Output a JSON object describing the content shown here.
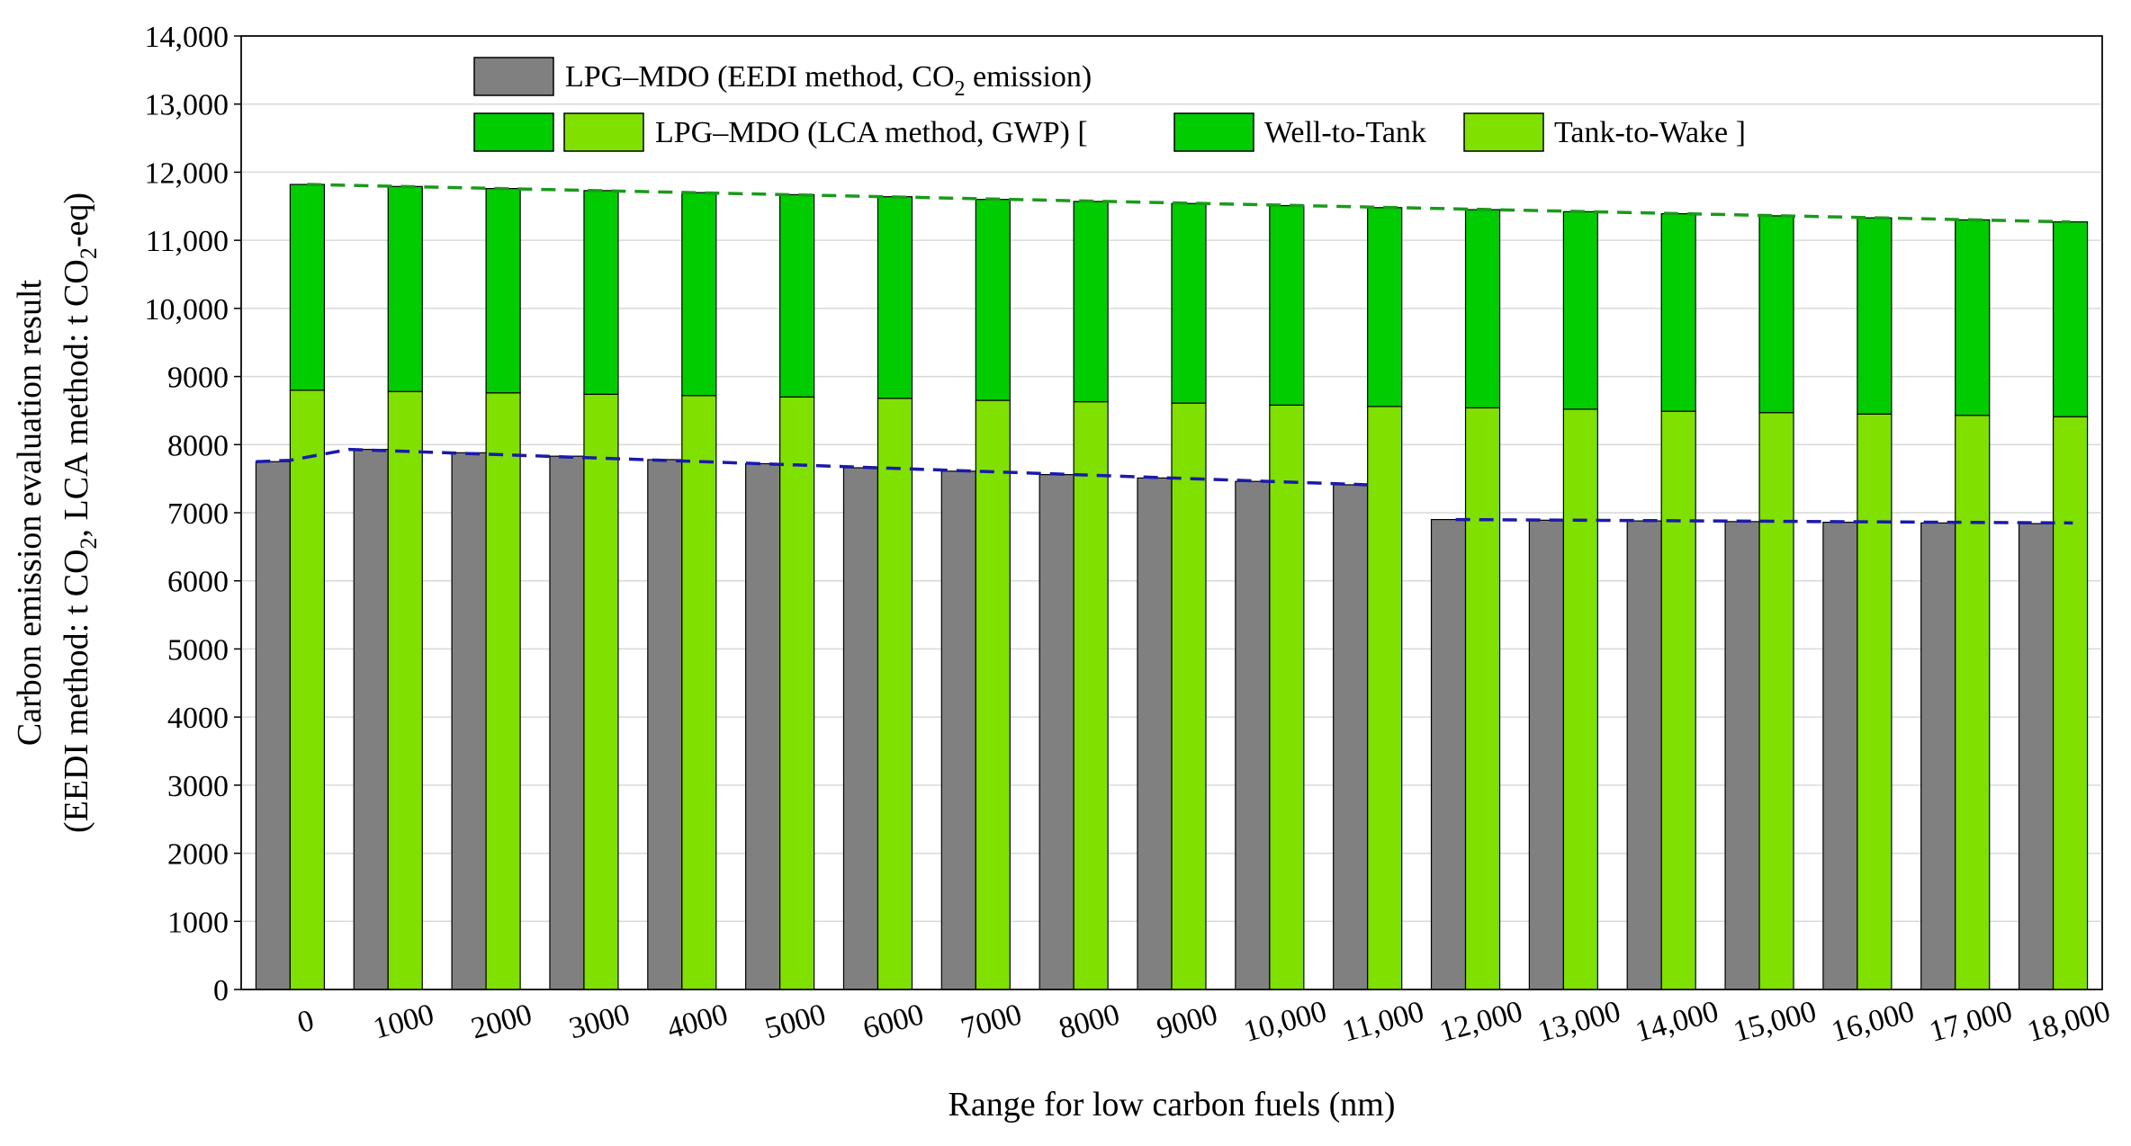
{
  "chart_data": {
    "type": "bar",
    "xlabel": "Range for low carbon fuels (nm)",
    "ylabel_line1": "Carbon emission evaluation result",
    "ylabel_line2": "(EEDI method: t CO₂, LCA method: t CO₂-eq)",
    "ylim": [
      0,
      14000
    ],
    "yticks": [
      0,
      1000,
      2000,
      3000,
      4000,
      5000,
      6000,
      7000,
      8000,
      9000,
      10000,
      11000,
      12000,
      13000,
      14000
    ],
    "ytick_labels": [
      "0",
      "1000",
      "2000",
      "3000",
      "4000",
      "5000",
      "6000",
      "7000",
      "8000",
      "9000",
      "10,000",
      "11,000",
      "12,000",
      "13,000",
      "14,000"
    ],
    "grid": true,
    "legend_position": "top-center",
    "categories": [
      "0",
      "1000",
      "2000",
      "3000",
      "4000",
      "5000",
      "6000",
      "7000",
      "8000",
      "9000",
      "10,000",
      "11,000",
      "12,000",
      "13,000",
      "14,000",
      "15,000",
      "16,000",
      "17,000",
      "18,000"
    ],
    "series": [
      {
        "name": "LPG–MDO (EEDI method, CO₂ emission)",
        "color": "#808080",
        "values": [
          7750,
          7930,
          7880,
          7830,
          7780,
          7720,
          7660,
          7610,
          7560,
          7510,
          7460,
          7410,
          6900,
          6890,
          6880,
          6870,
          6860,
          6850,
          6840
        ]
      },
      {
        "name": "Tank-to-Wake",
        "color": "#80e000",
        "values": [
          8800,
          8780,
          8760,
          8740,
          8720,
          8700,
          8680,
          8650,
          8630,
          8610,
          8580,
          8560,
          8540,
          8520,
          8490,
          8470,
          8450,
          8430,
          8410
        ]
      },
      {
        "name": "Well-to-Tank",
        "color": "#00cc00",
        "values": [
          3020,
          3010,
          3000,
          2990,
          2980,
          2970,
          2960,
          2950,
          2940,
          2930,
          2930,
          2920,
          2910,
          2900,
          2900,
          2890,
          2880,
          2870,
          2860
        ]
      }
    ],
    "lca_totals": [
      11820,
      11790,
      11760,
      11730,
      11700,
      11670,
      11640,
      11600,
      11570,
      11540,
      11510,
      11480,
      11450,
      11420,
      11390,
      11360,
      11330,
      11300,
      11270
    ],
    "trend_lines": [
      {
        "color": "#1a9a1a",
        "points": [
          [
            0,
            11820
          ],
          [
            18,
            11270
          ]
        ]
      },
      {
        "color": "#1a1aaa",
        "points": [
          [
            -0.35,
            7750
          ],
          [
            0,
            7770
          ],
          [
            0.6,
            7930
          ],
          [
            11,
            7410
          ]
        ]
      },
      {
        "color": "#1a1aaa",
        "points": [
          [
            11.9,
            6900
          ],
          [
            18.2,
            6850
          ]
        ]
      }
    ],
    "legend": {
      "row1_label": "LPG–MDO (EEDI method, CO",
      "row1_sub": "2",
      "row1_suffix": " emission)",
      "row2_label": "LPG–MDO (LCA method, GWP) [",
      "row2_wtt": "Well-to-Tank",
      "row2_ttw": "Tank-to-Wake ]"
    },
    "ylabel_parts": {
      "l2_a": "(EEDI method: t CO",
      "l2_b": "2",
      "l2_c": ", LCA method: t CO",
      "l2_d": "2",
      "l2_e": "-eq)"
    }
  }
}
